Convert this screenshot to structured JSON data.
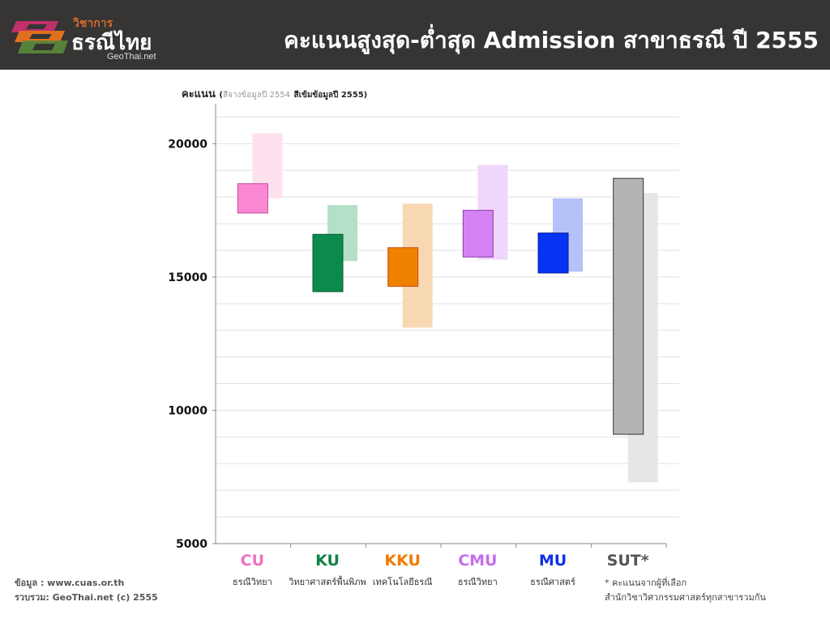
{
  "header": {
    "brand_small": "วิชาการ",
    "brand_big": "ธรณีไทย",
    "brand_site": "GeoThai.net",
    "title": "คะแนนสูงสุด-ต่ำสุด Admission สาขาธรณี ปี 2555"
  },
  "legend_note": {
    "ylabel": "คะแนน",
    "paren_open": "(",
    "light": "สีจางข้อมูลปี 2554",
    "dark": "สีเข้มข้อมูลปี 2555",
    "paren_close": ")"
  },
  "footer": {
    "source": "ข้อมูล : www.cuas.or.th",
    "compiled": "รวบรวม: GeoThai.net (c) 2555"
  },
  "footnote": {
    "line1": "* คะแนนจากผู้ที่เลือก",
    "line2": "สำนักวิชาวิศวกรรมศาสตร์ทุกสาขารวมกัน"
  },
  "chart_data": {
    "type": "bar",
    "subtype": "floating-range",
    "ylabel": "คะแนน",
    "ylim": [
      5000,
      21500
    ],
    "yticks": [
      5000,
      10000,
      15000,
      20000
    ],
    "grid": true,
    "categories": [
      "CU",
      "KU",
      "KKU",
      "CMU",
      "MU",
      "SUT*"
    ],
    "subtitles": [
      "ธรณีวิทยา",
      "วิทยาศาสตร์พื้นพิภพ",
      "เทคโนโลยีธรณี",
      "ธรณีวิทยา",
      "ธรณีศาสตร์",
      ""
    ],
    "category_colors": [
      "#f070c0",
      "#118044",
      "#f07a00",
      "#c56ef0",
      "#1130e8",
      "#555555"
    ],
    "series": [
      {
        "name": "สีจางข้อมูลปี 2554",
        "min": [
          17950,
          15600,
          13100,
          15650,
          15200,
          7300
        ],
        "max": [
          20400,
          17700,
          17750,
          19200,
          17950,
          18150
        ],
        "colors": [
          "#fde1ef",
          "#b4e0c8",
          "#f8d8b2",
          "#f0d6fb",
          "#b4c2fa",
          "#e6e6e6"
        ]
      },
      {
        "name": "สีเข้มข้อมูลปี 2555",
        "min": [
          17400,
          14450,
          14650,
          15750,
          15150,
          9100
        ],
        "max": [
          18500,
          16600,
          16100,
          17500,
          16650,
          18700
        ],
        "colors": [
          "#fa88d4",
          "#0a8a4c",
          "#ee8200",
          "#d583f4",
          "#0733f2",
          "#b4b4b4"
        ],
        "stroke": [
          "#c2479b",
          "#0a5a30",
          "#c74c10",
          "#8b3aa8",
          "#0a1f9e",
          "#333333"
        ]
      }
    ]
  }
}
